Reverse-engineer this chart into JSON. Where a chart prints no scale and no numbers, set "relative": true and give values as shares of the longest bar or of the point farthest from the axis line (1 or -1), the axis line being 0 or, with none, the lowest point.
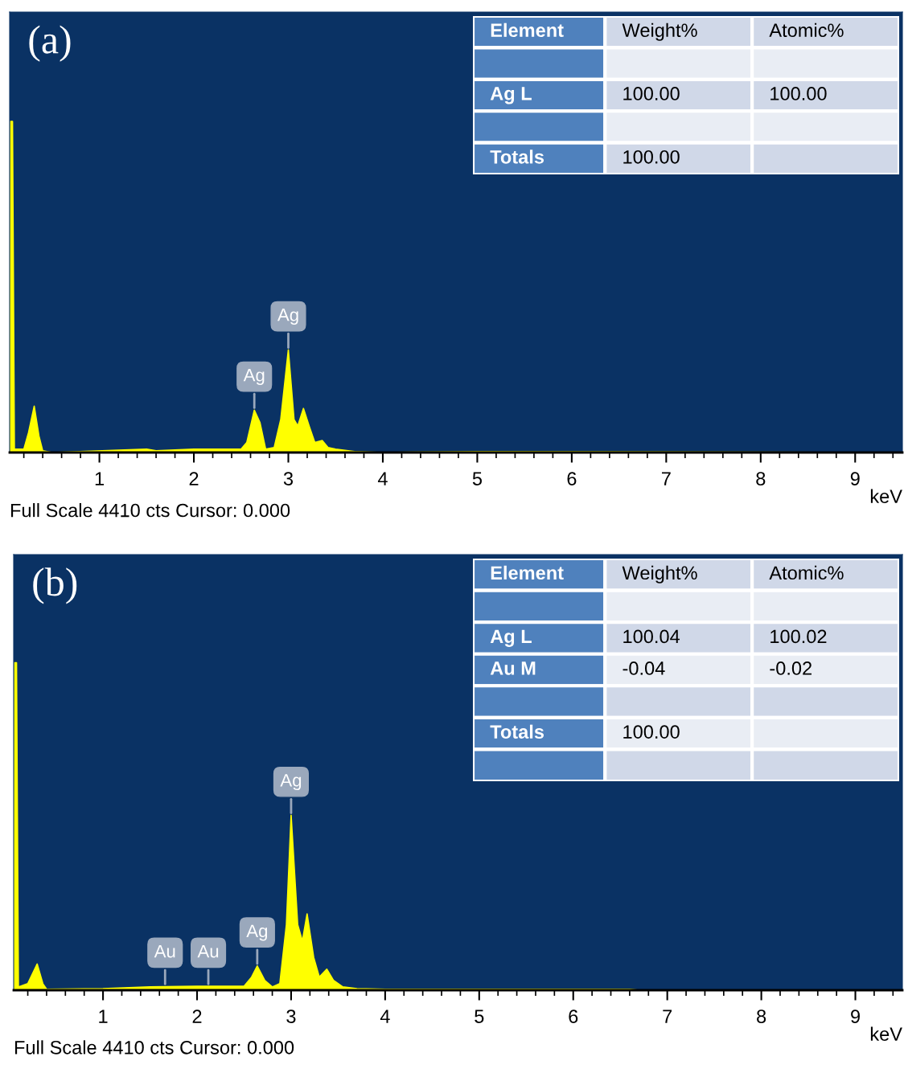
{
  "chart_data": [
    {
      "type": "area",
      "relative": true,
      "color": "#ffff00",
      "xlabel": "keV",
      "xlim": [
        0.05,
        9.5
      ],
      "xticks": [
        1,
        2,
        3,
        4,
        5,
        6,
        7,
        8,
        9
      ],
      "grid": false,
      "legend": false,
      "x": [
        0.055,
        0.06,
        0.08,
        0.1,
        0.2,
        0.25,
        0.31,
        0.36,
        0.4,
        0.5,
        1.5,
        1.6,
        2.0,
        2.5,
        2.56,
        2.64,
        2.7,
        2.76,
        2.85,
        2.92,
        3.0,
        3.06,
        3.1,
        3.16,
        3.22,
        3.28,
        3.36,
        3.42,
        3.5,
        3.7,
        4.0,
        5.0,
        9.5
      ],
      "values": [
        0,
        1.0,
        1.0,
        0.01,
        0.01,
        0.06,
        0.14,
        0.05,
        0.005,
        0,
        0.01,
        0.005,
        0.01,
        0.01,
        0.03,
        0.128,
        0.09,
        0.01,
        0.015,
        0.1,
        0.31,
        0.1,
        0.08,
        0.133,
        0.08,
        0.03,
        0.036,
        0.015,
        0.01,
        0.003,
        0,
        0.003,
        0
      ],
      "annotations": [
        "(a)",
        "Full Scale 4410 cts Cursor: 0.000",
        {
          "text": "Ag",
          "x": 2.64,
          "y": 0.128
        },
        {
          "text": "Ag",
          "x": 3.0,
          "y": 0.31
        }
      ]
    },
    {
      "type": "other",
      "categories": [
        "Element",
        "Weight%",
        "Atomic%"
      ],
      "cell_labels": [
        [
          null,
          null,
          null
        ],
        [
          "Ag L",
          "100.00",
          "100.00"
        ],
        [
          null,
          null,
          null
        ],
        [
          "Totals",
          "100.00",
          null
        ]
      ]
    },
    {
      "type": "area",
      "relative": true,
      "color": "#ffff00",
      "xlabel": "keV",
      "xlim": [
        0.05,
        9.5
      ],
      "xticks": [
        1,
        2,
        3,
        4,
        5,
        6,
        7,
        8,
        9
      ],
      "grid": false,
      "legend": false,
      "x": [
        0.055,
        0.06,
        0.08,
        0.1,
        0.2,
        0.3,
        0.36,
        0.4,
        1.0,
        1.5,
        2.0,
        2.5,
        2.58,
        2.64,
        2.72,
        2.8,
        2.88,
        2.95,
        3.0,
        3.07,
        3.12,
        3.17,
        3.24,
        3.3,
        3.38,
        3.45,
        3.55,
        3.7,
        4.0,
        6.6,
        6.7,
        9.5
      ],
      "values": [
        0,
        1.0,
        1.0,
        0.01,
        0.02,
        0.08,
        0.02,
        0.003,
        0.005,
        0.01,
        0.012,
        0.012,
        0.04,
        0.074,
        0.03,
        0.01,
        0.02,
        0.2,
        0.534,
        0.2,
        0.15,
        0.233,
        0.1,
        0.04,
        0.064,
        0.03,
        0.01,
        0.005,
        0.003,
        0.003,
        0,
        0
      ],
      "annotations": [
        "(b)",
        "Full Scale 4410 cts Cursor: 0.000",
        {
          "text": "Au",
          "x": 1.66,
          "y": 0.012
        },
        {
          "text": "Au",
          "x": 2.12,
          "y": 0.012
        },
        {
          "text": "Ag",
          "x": 2.64,
          "y": 0.074
        },
        {
          "text": "Ag",
          "x": 3.0,
          "y": 0.534
        }
      ]
    },
    {
      "type": "other",
      "categories": [
        "Element",
        "Weight%",
        "Atomic%"
      ],
      "cell_labels": [
        [
          null,
          null,
          null
        ],
        [
          "Ag L",
          "100.04",
          "100.02"
        ],
        [
          "Au M",
          "-0.04",
          "-0.02"
        ],
        [
          null,
          null,
          null
        ],
        [
          "Totals",
          "100.00",
          null
        ],
        [
          null,
          null,
          null
        ]
      ]
    }
  ]
}
